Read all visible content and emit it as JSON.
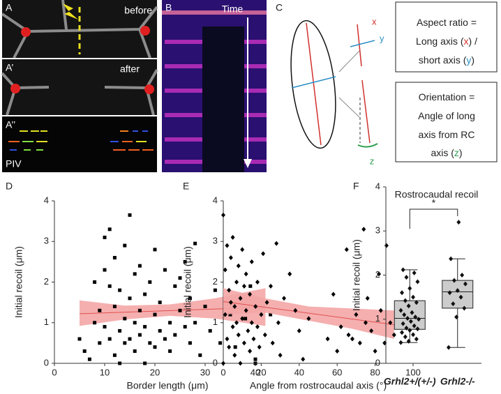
{
  "panels": {
    "a": {
      "label": "A",
      "note": "before"
    },
    "a1": {
      "label": "A’",
      "note": "after"
    },
    "a2": {
      "label": "A’’",
      "note": "PIV"
    },
    "b": {
      "label": "B",
      "note": "Time"
    },
    "c": {
      "label": "C",
      "x": "x",
      "y": "y",
      "z": "z",
      "aspect_ratio": [
        "Aspect ratio =",
        "Long axis (",
        "x",
        ") /",
        "short axis (",
        "y",
        ")"
      ],
      "orientation": [
        "Orientation =",
        "Angle of long",
        "axis from RC",
        "axis (",
        "z",
        ")"
      ]
    }
  },
  "chart_data": [
    {
      "type": "scatter",
      "label": "D",
      "marker": "square",
      "color": "#000000",
      "x_label": "Border length (μm)",
      "y_label": "Initial recoil (μm)",
      "xlim": [
        0,
        45
      ],
      "xticks": [
        0,
        10,
        20,
        30,
        40
      ],
      "ylim": [
        0,
        4
      ],
      "yticks": [
        0,
        1,
        2,
        3,
        4
      ],
      "x": [
        5,
        6,
        7,
        8,
        8,
        9,
        9,
        10,
        10,
        10,
        11,
        11,
        11,
        12,
        12,
        12,
        13,
        13,
        13,
        14,
        14,
        14,
        15,
        15,
        15,
        16,
        16,
        16,
        17,
        17,
        17,
        18,
        18,
        18,
        19,
        19,
        20,
        20,
        20,
        21,
        21,
        22,
        22,
        23,
        23,
        24,
        24,
        25,
        25,
        26,
        26,
        27,
        27,
        28,
        28,
        29,
        30,
        31,
        32,
        33,
        35,
        36,
        38,
        39,
        40,
        40,
        43
      ],
      "values": [
        0.6,
        0.3,
        0.1,
        1.0,
        2.0,
        0.5,
        1.3,
        0.9,
        2.3,
        3.1,
        0.6,
        1.9,
        3.3,
        0.2,
        1.4,
        2.6,
        0.8,
        1.8,
        0.0,
        1.1,
        2.9,
        0.5,
        3.65,
        1.6,
        0.6,
        0.3,
        2.2,
        1.0,
        0.7,
        1.3,
        2.4,
        0.0,
        1.7,
        0.9,
        0.5,
        2.0,
        1.2,
        2.8,
        0.4,
        0.8,
        1.5,
        0.6,
        2.3,
        1.0,
        0.3,
        1.9,
        0.7,
        1.3,
        2.1,
        0.9,
        2.5,
        0.5,
        1.6,
        2.95,
        1.0,
        0.2,
        1.4,
        0.8,
        1.8,
        0.5,
        1.2,
        0.4,
        1.1,
        1.9,
        0.1,
        0.0,
        1.2
      ],
      "fit": {
        "x": [
          5,
          42
        ],
        "values": [
          1.22,
          1.38
        ],
        "color": "#e05050"
      },
      "band": {
        "x": [
          5,
          14,
          23,
          32,
          42
        ],
        "lower": [
          0.92,
          1.08,
          1.17,
          1.1,
          0.92
        ],
        "upper": [
          1.55,
          1.42,
          1.45,
          1.6,
          1.85
        ],
        "color": "#f4a6a6"
      }
    },
    {
      "type": "scatter",
      "label": "E",
      "marker": "diamond",
      "color": "#000000",
      "x_label": "Angle from rostrocaudal axis (°)",
      "y_label": "Initial recoil (μm)",
      "xlim": [
        0,
        100
      ],
      "xticks": [
        0,
        20,
        40,
        60,
        80,
        100
      ],
      "ylim": [
        0,
        4
      ],
      "yticks": [
        0,
        1,
        2,
        3,
        4
      ],
      "x": [
        0,
        0,
        1,
        1,
        2,
        2,
        3,
        3,
        4,
        4,
        5,
        5,
        6,
        6,
        7,
        7,
        8,
        8,
        9,
        9,
        10,
        10,
        11,
        11,
        12,
        12,
        13,
        14,
        14,
        15,
        15,
        16,
        17,
        18,
        18,
        19,
        20,
        21,
        22,
        23,
        25,
        26,
        28,
        29,
        30,
        32,
        35,
        38,
        40,
        42,
        45,
        55,
        58,
        60,
        62,
        65,
        66,
        68,
        70,
        72,
        74,
        75,
        76,
        78,
        80,
        82,
        83,
        85,
        86,
        88,
        90
      ],
      "values": [
        3.65,
        0,
        2.3,
        1.2,
        0.6,
        2.9,
        1.8,
        0.4,
        1.5,
        2.6,
        0.9,
        3.1,
        1.4,
        0.2,
        2.0,
        1.0,
        0.7,
        2.4,
        1.6,
        0,
        1.1,
        2.8,
        0.5,
        1.9,
        1.3,
        2.2,
        0.8,
        1.7,
        0.3,
        1.0,
        2.5,
        0.6,
        1.4,
        2.0,
        0.9,
        0.4,
        1.2,
        2.7,
        0.7,
        1.5,
        1.9,
        0.5,
        2.95,
        1.0,
        0.2,
        1.6,
        2.2,
        1.3,
        0.8,
        0.1,
        1.1,
        0.6,
        1.7,
        0.3,
        0.9,
        2.8,
        0.7,
        0.6,
        1.2,
        0.5,
        3.3,
        1.0,
        1.6,
        0.8,
        0.3,
        2.2,
        1.3,
        0.5,
        2.9,
        1.0,
        0.7
      ],
      "fit": {
        "x": [
          0,
          90
        ],
        "values": [
          1.52,
          0.95
        ],
        "color": "#e05050"
      },
      "band": {
        "x": [
          0,
          22,
          45,
          68,
          90
        ],
        "lower": [
          1.2,
          1.25,
          1.05,
          0.85,
          0.6
        ],
        "upper": [
          1.85,
          1.6,
          1.4,
          1.35,
          1.3
        ],
        "color": "#f4a6a6"
      }
    },
    {
      "type": "box",
      "label": "F",
      "title": "Rostrocaudal recoil",
      "annotation": "*",
      "y_label": "Initial recoil (μm)",
      "color": "#cccccc",
      "ylim": [
        0,
        4
      ],
      "yticks": [
        0,
        1,
        2,
        3,
        4
      ],
      "categories": [
        "Grhl2+/(+/-)",
        "Grhl2-/-"
      ],
      "boxes": [
        {
          "min": 0.47,
          "q1": 0.77,
          "median": 1.02,
          "q3": 1.42,
          "max": 2.12
        },
        {
          "min": 0.36,
          "q1": 1.25,
          "median": 1.62,
          "q3": 1.88,
          "max": 2.37
        }
      ],
      "points": [
        [
          0.47,
          0.5,
          0.55,
          0.6,
          0.65,
          0.7,
          0.75,
          0.78,
          0.8,
          0.85,
          0.9,
          0.95,
          1.0,
          1.02,
          1.05,
          1.1,
          1.15,
          1.2,
          1.3,
          1.38,
          1.42,
          1.5,
          1.6,
          1.7,
          1.85,
          1.95,
          2.05,
          2.12
        ],
        [
          0.36,
          1.05,
          1.25,
          1.35,
          1.5,
          1.6,
          1.65,
          1.8,
          1.88,
          2.0,
          2.37,
          3.2
        ]
      ]
    }
  ]
}
